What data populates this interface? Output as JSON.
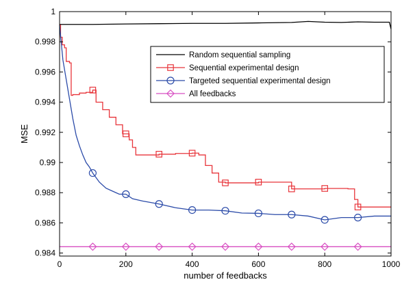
{
  "chart_data": {
    "type": "line",
    "title": "",
    "xlabel": "number of feedbacks",
    "ylabel": "MSE",
    "xlim": [
      0,
      1000
    ],
    "ylim": [
      0.9838,
      1.0
    ],
    "xticks": [
      0,
      200,
      400,
      600,
      800,
      1000
    ],
    "yticks": [
      0.984,
      0.986,
      0.988,
      0.99,
      0.992,
      0.994,
      0.996,
      0.998,
      1
    ],
    "ytick_labels": [
      "0.984",
      "0.986",
      "0.988",
      "0.99",
      "0.992",
      "0.994",
      "0.996",
      "0.998",
      "1"
    ],
    "grid": false,
    "legend_position": "top-right",
    "series": [
      {
        "name": "Random sequential sampling",
        "color": "#000000",
        "marker": "none",
        "step": false,
        "x": [
          0,
          100,
          200,
          300,
          400,
          500,
          600,
          700,
          750,
          800,
          850,
          900,
          950,
          995,
          1000
        ],
        "y": [
          0.99915,
          0.99915,
          0.99918,
          0.9992,
          0.99922,
          0.99922,
          0.99925,
          0.99928,
          0.99935,
          0.9993,
          0.99928,
          0.99932,
          0.9993,
          0.9993,
          0.99885
        ],
        "marker_x": [],
        "marker_y": []
      },
      {
        "name": "Sequential experimental design",
        "color": "#e8343a",
        "marker": "square",
        "step": true,
        "x": [
          0,
          3,
          8,
          15,
          20,
          30,
          35,
          40,
          60,
          80,
          100,
          110,
          130,
          150,
          170,
          190,
          200,
          210,
          220,
          230,
          300,
          350,
          400,
          420,
          440,
          460,
          480,
          500,
          600,
          690,
          700,
          790,
          800,
          870,
          890,
          900,
          1000
        ],
        "y": [
          0.9991,
          0.9983,
          0.9978,
          0.9976,
          0.9967,
          0.9966,
          0.99445,
          0.9945,
          0.9946,
          0.99465,
          0.9948,
          0.994,
          0.9935,
          0.993,
          0.9925,
          0.9919,
          0.9919,
          0.9915,
          0.991,
          0.9905,
          0.99055,
          0.9906,
          0.99062,
          0.9905,
          0.9898,
          0.9893,
          0.9887,
          0.98865,
          0.9887,
          0.9887,
          0.98825,
          0.98825,
          0.98828,
          0.98825,
          0.98755,
          0.98705,
          0.98705
        ],
        "marker_x": [
          100,
          200,
          300,
          400,
          500,
          600,
          700,
          800,
          900
        ],
        "marker_y": [
          0.9948,
          0.9919,
          0.99055,
          0.99062,
          0.98865,
          0.9887,
          0.98825,
          0.98828,
          0.98705
        ]
      },
      {
        "name": "Targeted sequential experimental design",
        "color": "#2a4aa8",
        "marker": "circle",
        "step": false,
        "x": [
          0,
          10,
          20,
          30,
          40,
          50,
          60,
          70,
          80,
          90,
          100,
          120,
          140,
          160,
          180,
          200,
          220,
          250,
          300,
          350,
          400,
          450,
          500,
          550,
          600,
          650,
          700,
          750,
          800,
          850,
          900,
          950,
          1000
        ],
        "y": [
          0.9991,
          0.9968,
          0.9955,
          0.9942,
          0.9929,
          0.9918,
          0.9911,
          0.9905,
          0.99,
          0.9897,
          0.9893,
          0.9887,
          0.9883,
          0.9881,
          0.9879,
          0.9879,
          0.9876,
          0.98745,
          0.98725,
          0.987,
          0.98685,
          0.98685,
          0.9868,
          0.98665,
          0.98663,
          0.98655,
          0.98655,
          0.98645,
          0.9862,
          0.98635,
          0.98635,
          0.98645,
          0.98645
        ],
        "marker_x": [
          100,
          200,
          300,
          400,
          500,
          600,
          700,
          800,
          900
        ],
        "marker_y": [
          0.9893,
          0.9879,
          0.98725,
          0.98685,
          0.9868,
          0.98663,
          0.98655,
          0.9862,
          0.98635
        ]
      },
      {
        "name": "All feedbacks",
        "color": "#d84fc2",
        "marker": "diamond",
        "step": false,
        "x": [
          0,
          1000
        ],
        "y": [
          0.98442,
          0.98442
        ],
        "marker_x": [
          100,
          200,
          300,
          400,
          500,
          600,
          700,
          800,
          900
        ],
        "marker_y": [
          0.98442,
          0.98442,
          0.98442,
          0.98442,
          0.98442,
          0.98442,
          0.98442,
          0.98442,
          0.98442
        ]
      }
    ]
  }
}
